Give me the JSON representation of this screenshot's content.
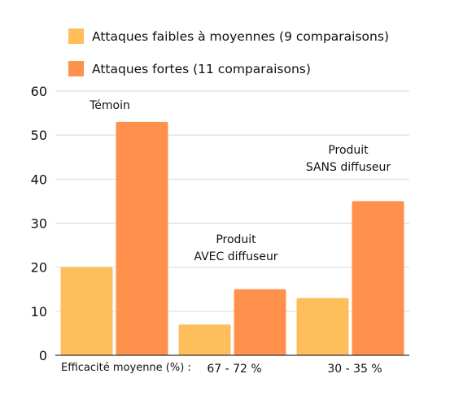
{
  "chart_data": {
    "type": "bar",
    "categories": [
      "Témoin",
      "Produit AVEC diffuseur",
      "Produit SANS diffuseur"
    ],
    "series": [
      {
        "name": "Attaques faibles à moyennes (9 comparaisons)",
        "color": "#FFBE5C",
        "values": [
          20,
          7,
          13
        ]
      },
      {
        "name": "Attaques fortes (11 comparaisons)",
        "color": "#FF914D",
        "values": [
          53,
          15,
          35
        ]
      }
    ],
    "ylim": [
      0,
      60
    ],
    "yticks": [
      "0",
      "10",
      "20",
      "30",
      "40",
      "50",
      "60"
    ],
    "grid": true,
    "legend_position": "top",
    "annotations": [
      {
        "category": 0,
        "lines": [
          "Témoin"
        ]
      },
      {
        "category": 1,
        "lines": [
          "Produit",
          "AVEC diffuseur"
        ]
      },
      {
        "category": 2,
        "lines": [
          "Produit",
          "SANS diffuseur"
        ]
      }
    ],
    "footer": {
      "label": "Efficacité moyenne (%) :",
      "values": [
        "",
        "67 - 72 %",
        "30 - 35 %"
      ]
    }
  }
}
